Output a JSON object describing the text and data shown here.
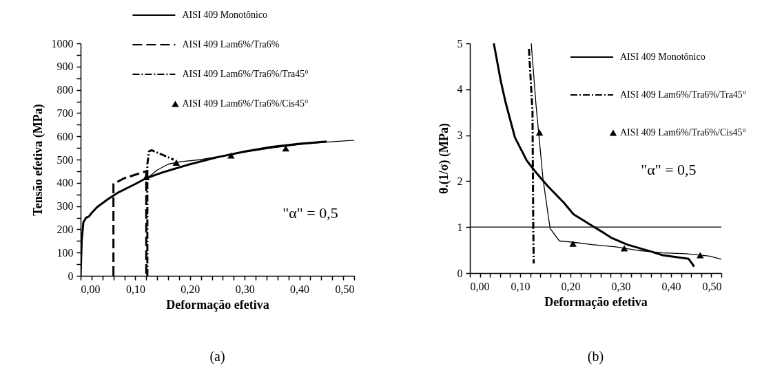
{
  "chart_data": [
    {
      "type": "line",
      "xlabel": "Deformação efetiva",
      "ylabel": "Tensão efetiva (MPa)",
      "legend": "top right",
      "grid": false,
      "xlim": [
        0,
        0.5
      ],
      "ylim": [
        0,
        1000
      ],
      "xticks": [
        {
          "value": 0,
          "label": "0,00"
        },
        {
          "value": 0.02,
          "label": null
        },
        {
          "value": 0.04,
          "label": null
        },
        {
          "value": 0.06,
          "label": null
        },
        {
          "value": 0.08,
          "label": null
        },
        {
          "value": 0.1,
          "label": "0,10"
        },
        {
          "value": 0.12,
          "label": null
        },
        {
          "value": 0.14,
          "label": null
        },
        {
          "value": 0.16,
          "label": null
        },
        {
          "value": 0.18,
          "label": null
        },
        {
          "value": 0.2,
          "label": "0,20"
        },
        {
          "value": 0.22,
          "label": null
        },
        {
          "value": 0.24,
          "label": null
        },
        {
          "value": 0.26,
          "label": null
        },
        {
          "value": 0.28,
          "label": null
        },
        {
          "value": 0.3,
          "label": "0,30"
        },
        {
          "value": 0.32,
          "label": null
        },
        {
          "value": 0.34,
          "label": null
        },
        {
          "value": 0.36,
          "label": null
        },
        {
          "value": 0.38,
          "label": null
        },
        {
          "value": 0.4,
          "label": "0,40"
        },
        {
          "value": 0.42,
          "label": null
        },
        {
          "value": 0.44,
          "label": null
        },
        {
          "value": 0.46,
          "label": null
        },
        {
          "value": 0.48,
          "label": null
        },
        {
          "value": 0.5,
          "label": "0,50"
        }
      ],
      "yticks": [
        0,
        {
          "value": 50,
          "label": null
        },
        100,
        {
          "value": 150,
          "label": null
        },
        200,
        {
          "value": 250,
          "label": null
        },
        300,
        {
          "value": 350,
          "label": null
        },
        400,
        {
          "value": 450,
          "label": null
        },
        500,
        {
          "value": 550,
          "label": null
        },
        600,
        {
          "value": 650,
          "label": null
        },
        700,
        {
          "value": 750,
          "label": null
        },
        800,
        {
          "value": 850,
          "label": null
        },
        900,
        {
          "value": 950,
          "label": null
        },
        1000
      ],
      "annotations": [
        "\"α\" = 0,5",
        "(a)"
      ],
      "series": [
        {
          "name": "AISI 409 Monotônico",
          "line_style": "solid",
          "color": "#000000",
          "x": [
            0,
            0.002,
            0.005,
            0.01,
            0.015,
            0.02,
            0.03,
            0.05,
            0.07,
            0.1,
            0.12,
            0.15,
            0.2,
            0.25,
            0.3,
            0.35,
            0.4,
            0.45
          ],
          "values": [
            0,
            150,
            230,
            250,
            255,
            270,
            295,
            330,
            360,
            395,
            420,
            445,
            480,
            510,
            535,
            555,
            568,
            578
          ]
        },
        {
          "name": "AISI 409 Lam6%/Tra6%",
          "line_style": "dashed",
          "color": "#000000",
          "x": [
            0.06,
            0.06,
            0.08,
            0.1,
            0.12,
            0.12
          ],
          "values": [
            0,
            395,
            420,
            435,
            450,
            0
          ]
        },
        {
          "name": "AISI 409 Lam6%/Tra6%/Tra45°",
          "line_style": "dashdot",
          "color": "#000000",
          "x": [
            0.122,
            0.122,
            0.125,
            0.13,
            0.15,
            0.16,
            0.17
          ],
          "values": [
            0,
            480,
            535,
            540,
            520,
            510,
            500
          ]
        },
        {
          "line_style": "solid",
          "color": "#000000",
          "x": [
            0.122,
            0.14,
            0.16,
            0.18,
            0.22,
            0.28,
            0.35,
            0.4,
            0.45,
            0.5
          ],
          "values": [
            420,
            455,
            480,
            490,
            500,
            525,
            550,
            565,
            575,
            583
          ]
        },
        {
          "name": "AISI 409 Lam6%/Tra6%/Cis45°",
          "type": "scatter",
          "marker": "triangle",
          "color": "#000000",
          "x": [
            0.12,
            0.175,
            0.275,
            0.375
          ],
          "values": [
            425,
            487,
            518,
            548
          ]
        }
      ]
    },
    {
      "type": "line",
      "xlabel": "Deformação efetiva",
      "ylabel": "θ.(1/σ) (MPa)",
      "legend": "top right",
      "grid": false,
      "xlim": [
        0,
        0.5
      ],
      "ylim": [
        0,
        5
      ],
      "xticks": [
        {
          "value": 0,
          "label": "0,00"
        },
        {
          "value": 0.02,
          "label": null
        },
        {
          "value": 0.04,
          "label": null
        },
        {
          "value": 0.06,
          "label": null
        },
        {
          "value": 0.08,
          "label": null
        },
        {
          "value": 0.1,
          "label": "0,10"
        },
        {
          "value": 0.12,
          "label": null
        },
        {
          "value": 0.14,
          "label": null
        },
        {
          "value": 0.16,
          "label": null
        },
        {
          "value": 0.18,
          "label": null
        },
        {
          "value": 0.2,
          "label": "0,20"
        },
        {
          "value": 0.22,
          "label": null
        },
        {
          "value": 0.24,
          "label": null
        },
        {
          "value": 0.26,
          "label": null
        },
        {
          "value": 0.28,
          "label": null
        },
        {
          "value": 0.3,
          "label": "0,30"
        },
        {
          "value": 0.32,
          "label": null
        },
        {
          "value": 0.34,
          "label": null
        },
        {
          "value": 0.36,
          "label": null
        },
        {
          "value": 0.38,
          "label": null
        },
        {
          "value": 0.4,
          "label": "0,40"
        },
        {
          "value": 0.42,
          "label": null
        },
        {
          "value": 0.44,
          "label": null
        },
        {
          "value": 0.46,
          "label": null
        },
        {
          "value": 0.48,
          "label": null
        },
        {
          "value": 0.5,
          "label": "0,50"
        }
      ],
      "yticks": [
        0,
        1,
        2,
        3,
        4,
        5
      ],
      "ref_lines": [
        {
          "axis": "y",
          "value": 1,
          "color": "#000000"
        }
      ],
      "annotations": [
        "\"α\" = 0,5",
        "(b)"
      ],
      "series": [
        {
          "name": "AISI 409 Monotônico",
          "line_style": "solid",
          "color": "#000000",
          "x": [
            0.0476,
            0.0616,
            0.0709,
            0.0896,
            0.113,
            0.1315,
            0.155,
            0.187,
            0.206,
            0.243,
            0.267,
            0.281,
            0.313,
            0.36,
            0.383,
            0.435,
            0.446
          ],
          "values": [
            5,
            4.17,
            3.72,
            2.95,
            2.45,
            2.19,
            1.89,
            1.53,
            1.28,
            1.03,
            0.87,
            0.77,
            0.62,
            0.47,
            0.39,
            0.31,
            0.14
          ]
        },
        {
          "name": "AISI 409 Lam6%/Tra6%/Tra45°",
          "line_style": "dashdot",
          "color": "#000000",
          "x": [
            0.1175,
            0.1245,
            0.126,
            0.127
          ],
          "values": [
            4.88,
            3.51,
            1.03,
            0.21
          ]
        },
        {
          "line_style": "solid",
          "color": "#000000",
          "x": [
            0.122,
            0.1315,
            0.1455,
            0.1595,
            0.178,
            0.206,
            0.243,
            0.29,
            0.337,
            0.383,
            0.43,
            0.477,
            0.5
          ],
          "values": [
            5,
            3.66,
            2.04,
            0.97,
            0.7,
            0.67,
            0.62,
            0.57,
            0.49,
            0.44,
            0.42,
            0.37,
            0.3
          ]
        },
        {
          "name": "AISI 409 Lam6%/Tra6%/Cis45°",
          "type": "scatter",
          "marker": "triangle",
          "color": "#000000",
          "x": [
            0.1385,
            0.205,
            0.307,
            0.458
          ],
          "values": [
            3.06,
            0.64,
            0.54,
            0.39
          ]
        }
      ]
    }
  ]
}
